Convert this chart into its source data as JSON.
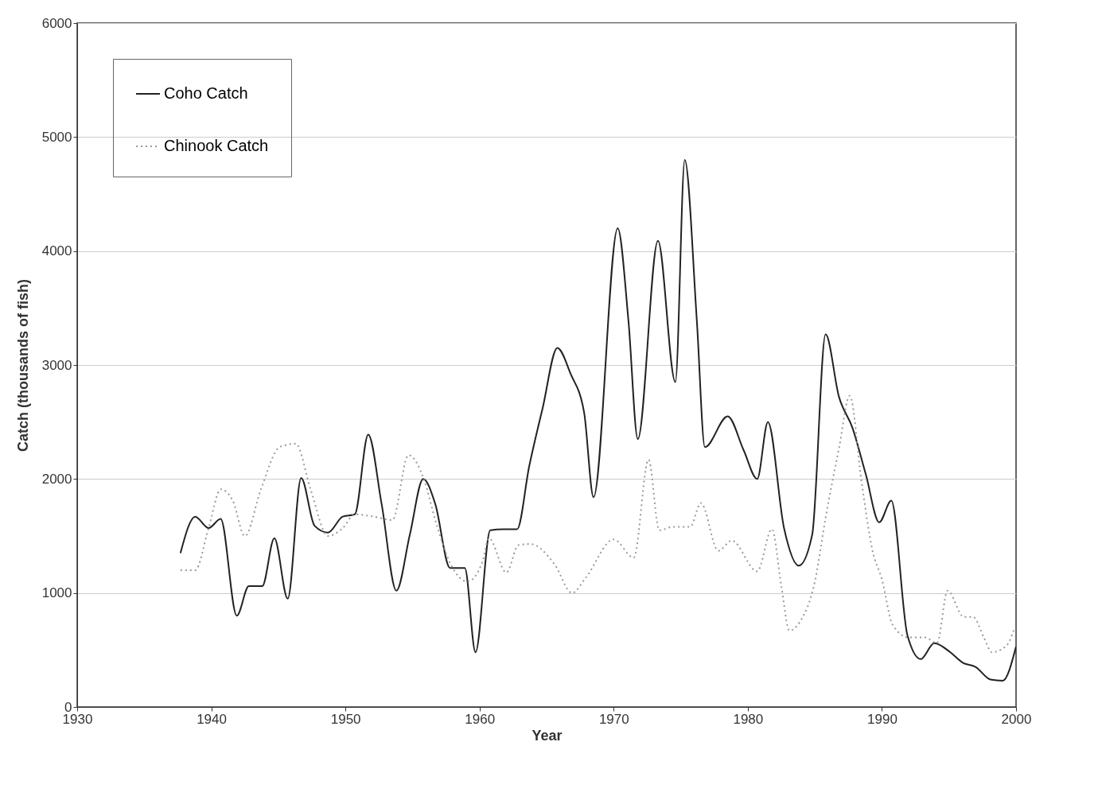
{
  "chart_data": {
    "type": "line",
    "xlabel": "Year",
    "ylabel": "Catch (thousands of fish)",
    "xlim": [
      1930,
      2000
    ],
    "xticks": [
      1930,
      1940,
      1950,
      1960,
      1970,
      1980,
      1990,
      2000
    ],
    "ylim": [
      0,
      6000
    ],
    "yticks": [
      0,
      1000,
      2000,
      3000,
      4000,
      5000,
      6000
    ],
    "grid": "y",
    "legend": "top left",
    "marker": "none",
    "series": [
      {
        "name": "Coho Catch",
        "color": "#222222",
        "line_style": "solid",
        "x": [
          1937.7,
          1938.8,
          1939.8,
          1940.7,
          1941.9,
          1942.8,
          1943.8,
          1944.7,
          1945.7,
          1946.7,
          1947.7,
          1948.7,
          1949.8,
          1950.7,
          1951.7,
          1952.7,
          1953.8,
          1954.8,
          1955.8,
          1956.7,
          1957.8,
          1958.9,
          1959.7,
          1960.8,
          1961.8,
          1962.8,
          1963.7,
          1964.7,
          1965.8,
          1966.8,
          1967.8,
          1968.5,
          1970.3,
          1971.1,
          1971.8,
          1973.3,
          1974.6,
          1975.3,
          1976.2,
          1976.8,
          1978.5,
          1979.7,
          1980.7,
          1981.5,
          1982.7,
          1983.8,
          1984.8,
          1985.8,
          1986.8,
          1987.8,
          1988.8,
          1989.8,
          1990.7,
          1991.9,
          1992.9,
          1993.9,
          1995.1,
          1996.0,
          1997.0,
          1998.1,
          1999.0,
          2000.0
        ],
        "values": [
          1350,
          1670,
          1570,
          1650,
          800,
          1060,
          1060,
          1480,
          950,
          2010,
          1590,
          1530,
          1670,
          1690,
          2390,
          1780,
          1020,
          1510,
          2000,
          1780,
          1220,
          1220,
          480,
          1550,
          1560,
          1560,
          2110,
          2620,
          3150,
          2920,
          2580,
          1840,
          4200,
          3390,
          2350,
          4090,
          2850,
          4800,
          3390,
          2280,
          2550,
          2250,
          2000,
          2500,
          1570,
          1240,
          1510,
          3270,
          2720,
          2450,
          2040,
          1620,
          1810,
          630,
          420,
          560,
          480,
          390,
          350,
          240,
          230,
          530
        ]
      },
      {
        "name": "Chinook Catch",
        "color": "#999999",
        "line_style": "dotted",
        "x": [
          1937.7,
          1938.8,
          1939.8,
          1940.7,
          1941.6,
          1942.5,
          1943.7,
          1945.1,
          1946.3,
          1947.4,
          1948.7,
          1949.8,
          1950.7,
          1952.1,
          1953.5,
          1954.7,
          1955.9,
          1956.7,
          1957.9,
          1959.1,
          1960.2,
          1960.7,
          1962.0,
          1962.9,
          1963.8,
          1965.6,
          1966.9,
          1967.9,
          1970.0,
          1971.5,
          1972.6,
          1973.4,
          1974.4,
          1975.7,
          1976.5,
          1977.8,
          1978.8,
          1980.7,
          1981.8,
          1982.5,
          1983.1,
          1983.9,
          1985.0,
          1985.8,
          1986.8,
          1987.6,
          1988.5,
          1989.3,
          1990.0,
          1990.8,
          1992.0,
          1993.2,
          1994.1,
          1994.9,
          1996.1,
          1996.8,
          1997.6,
          1998.2,
          1999.3,
          1999.9
        ],
        "values": [
          1200,
          1200,
          1570,
          1910,
          1810,
          1500,
          1910,
          2280,
          2310,
          1910,
          1500,
          1570,
          1690,
          1670,
          1640,
          2210,
          1980,
          1640,
          1240,
          1100,
          1270,
          1480,
          1180,
          1420,
          1430,
          1250,
          1000,
          1130,
          1470,
          1310,
          2170,
          1550,
          1580,
          1580,
          1790,
          1370,
          1460,
          1190,
          1560,
          1060,
          670,
          750,
          1100,
          1660,
          2270,
          2730,
          1960,
          1370,
          1120,
          720,
          610,
          610,
          560,
          1020,
          790,
          790,
          610,
          480,
          540,
          700
        ]
      }
    ]
  }
}
